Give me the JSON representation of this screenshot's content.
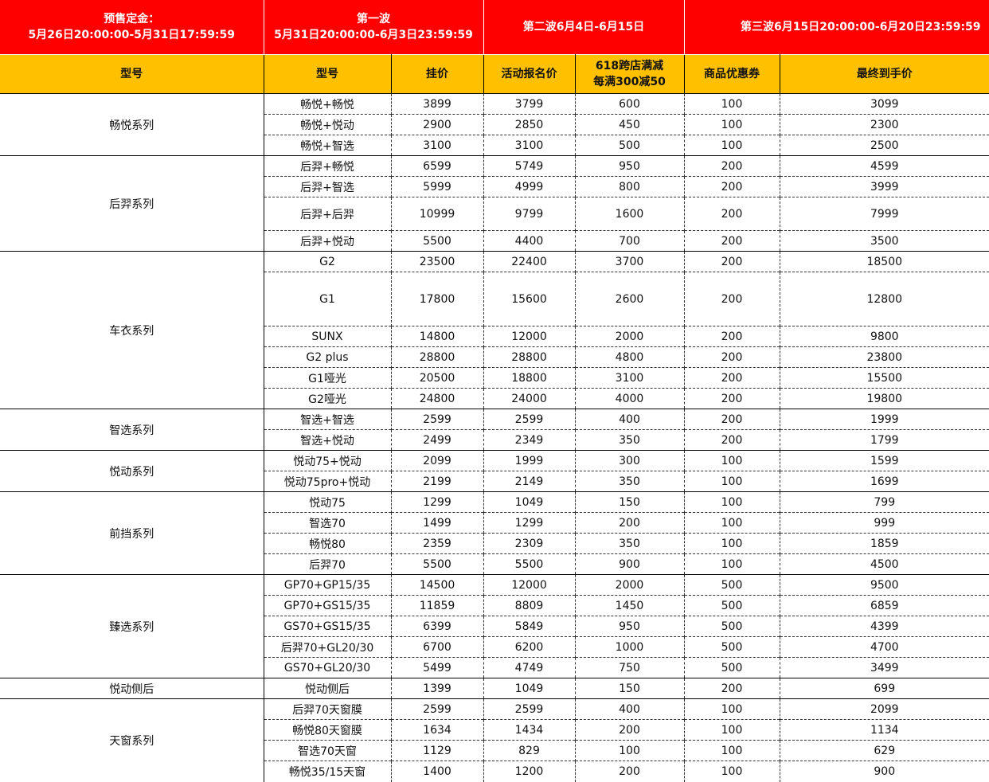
{
  "header_phases": [
    {
      "line1": "预售定金：",
      "line2": "5月26日20:00:00-5月31日17:59:59"
    },
    {
      "line1": "第一波",
      "line2": "5月31日20:00:00-6月3日23:59:59"
    },
    {
      "line1": "第二波6月4日-6月15日",
      "line2": ""
    },
    {
      "line1": "第三波6月15日20:00:00-6月20日23:59:59",
      "line2": ""
    }
  ],
  "columns": [
    "型号",
    "型号",
    "挂价",
    "活动报名价",
    "618跨店满减\n每满300减50",
    "商品优惠券",
    "最终到手价"
  ],
  "colors": {
    "phase_header": "#ff0000",
    "column_header": "#ffc000"
  },
  "groups": [
    {
      "series": "畅悦系列",
      "rows": [
        [
          "畅悦+畅悦",
          "3899",
          "3799",
          "600",
          "100",
          "3099"
        ],
        [
          "畅悦+悦动",
          "2900",
          "2850",
          "450",
          "100",
          "2300"
        ],
        [
          "畅悦+智选",
          "3100",
          "3100",
          "500",
          "100",
          "2500"
        ]
      ]
    },
    {
      "series": "后羿系列",
      "rows": [
        [
          "后羿+畅悦",
          "6599",
          "5749",
          "950",
          "200",
          "4599"
        ],
        [
          "后羿+智选",
          "5999",
          "4999",
          "800",
          "200",
          "3999"
        ],
        [
          "后羿+后羿",
          "10999",
          "9799",
          "1600",
          "200",
          "7999"
        ],
        [
          "后羿+悦动",
          "5500",
          "4400",
          "700",
          "200",
          "3500"
        ]
      ]
    },
    {
      "series": "车衣系列",
      "rows": [
        [
          "G2",
          "23500",
          "22400",
          "3700",
          "200",
          "18500"
        ],
        [
          "G1",
          "17800",
          "15600",
          "2600",
          "200",
          "12800"
        ],
        [
          "SUNX",
          "14800",
          "12000",
          "2000",
          "200",
          "9800"
        ],
        [
          "G2 plus",
          "28800",
          "28800",
          "4800",
          "200",
          "23800"
        ],
        [
          "G1哑光",
          "20500",
          "18800",
          "3100",
          "200",
          "15500"
        ],
        [
          "G2哑光",
          "24800",
          "24000",
          "4000",
          "200",
          "19800"
        ]
      ]
    },
    {
      "series": "智选系列",
      "rows": [
        [
          "智选+智选",
          "2599",
          "2599",
          "400",
          "200",
          "1999"
        ],
        [
          "智选+悦动",
          "2499",
          "2349",
          "350",
          "200",
          "1799"
        ]
      ]
    },
    {
      "series": "悦动系列",
      "rows": [
        [
          "悦动75+悦动",
          "2099",
          "1999",
          "300",
          "100",
          "1599"
        ],
        [
          "悦动75pro+悦动",
          "2199",
          "2149",
          "350",
          "100",
          "1699"
        ]
      ]
    },
    {
      "series": "前挡系列",
      "rows": [
        [
          "悦动75",
          "1299",
          "1049",
          "150",
          "100",
          "799"
        ],
        [
          "智选70",
          "1499",
          "1299",
          "200",
          "100",
          "999"
        ],
        [
          "畅悦80",
          "2359",
          "2309",
          "350",
          "100",
          "1859"
        ],
        [
          "后羿70",
          "5500",
          "5500",
          "900",
          "100",
          "4500"
        ]
      ]
    },
    {
      "series": "臻选系列",
      "rows": [
        [
          "GP70+GP15/35",
          "14500",
          "12000",
          "2000",
          "500",
          "9500"
        ],
        [
          "GP70+GS15/35",
          "11859",
          "8809",
          "1450",
          "500",
          "6859"
        ],
        [
          "GS70+GS15/35",
          "6399",
          "5849",
          "950",
          "500",
          "4399"
        ],
        [
          "后羿70+GL20/30",
          "6700",
          "6200",
          "1000",
          "500",
          "4700"
        ],
        [
          "GS70+GL20/30",
          "5499",
          "4749",
          "750",
          "500",
          "3499"
        ]
      ]
    },
    {
      "series": "悦动侧后",
      "rows": [
        [
          "悦动侧后",
          "1399",
          "1049",
          "150",
          "200",
          "699"
        ]
      ]
    },
    {
      "series": "天窗系列",
      "rows": [
        [
          "后羿70天窗膜",
          "2599",
          "2599",
          "400",
          "100",
          "2099"
        ],
        [
          "畅悦80天窗膜",
          "1634",
          "1434",
          "200",
          "100",
          "1134"
        ],
        [
          "智选70天窗",
          "1129",
          "829",
          "100",
          "100",
          "629"
        ],
        [
          "畅悦35/15天窗",
          "1400",
          "1200",
          "200",
          "100",
          "900"
        ]
      ]
    }
  ]
}
